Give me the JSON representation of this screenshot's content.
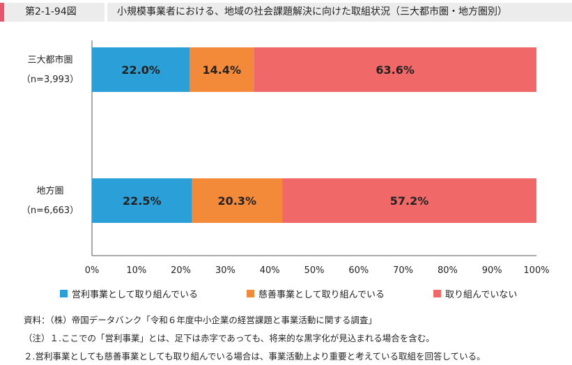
{
  "header": {
    "fig_label": "第2-1-94図",
    "title": "小規模事業者における、地域の社会課題解決に向けた取組状況（三大都市圏・地方圏別）"
  },
  "chart_data": {
    "type": "bar",
    "orientation": "horizontal",
    "stacked": true,
    "categories": [
      {
        "name": "三大都市圏",
        "n": "（n=3,993）"
      },
      {
        "name": "地方圏",
        "n": "（n=6,663）"
      }
    ],
    "series": [
      {
        "name": "営利事業として取り組んでいる",
        "color": "#2a9fd8",
        "values": [
          22.0,
          22.5
        ],
        "labels": [
          "22.0%",
          "22.5%"
        ]
      },
      {
        "name": "慈善事業として取り組んでいる",
        "color": "#f28a3a",
        "values": [
          14.4,
          20.3
        ],
        "labels": [
          "14.4%",
          "20.3%"
        ]
      },
      {
        "name": "取り組んでいない",
        "color": "#f06868",
        "values": [
          63.6,
          57.2
        ],
        "labels": [
          "63.6%",
          "57.2%"
        ]
      }
    ],
    "xlim": [
      0,
      100
    ],
    "xticks": [
      "0%",
      "10%",
      "20%",
      "30%",
      "40%",
      "50%",
      "60%",
      "70%",
      "80%",
      "90%",
      "100%"
    ],
    "legend": "bottom",
    "grid": false
  },
  "notes": {
    "source": "資料：（株）帝国データバンク「令和６年度中小企業の経営課題と事業活動に関する調査」",
    "note1": "（注）１.ここでの「営利事業」とは、足下は赤字であっても、将来的な黒字化が見込まれる場合を含む。",
    "note2": "２.営利事業としても慈善事業としても取り組んでいる場合は、事業活動上より重要と考えている取組を回答している。"
  }
}
